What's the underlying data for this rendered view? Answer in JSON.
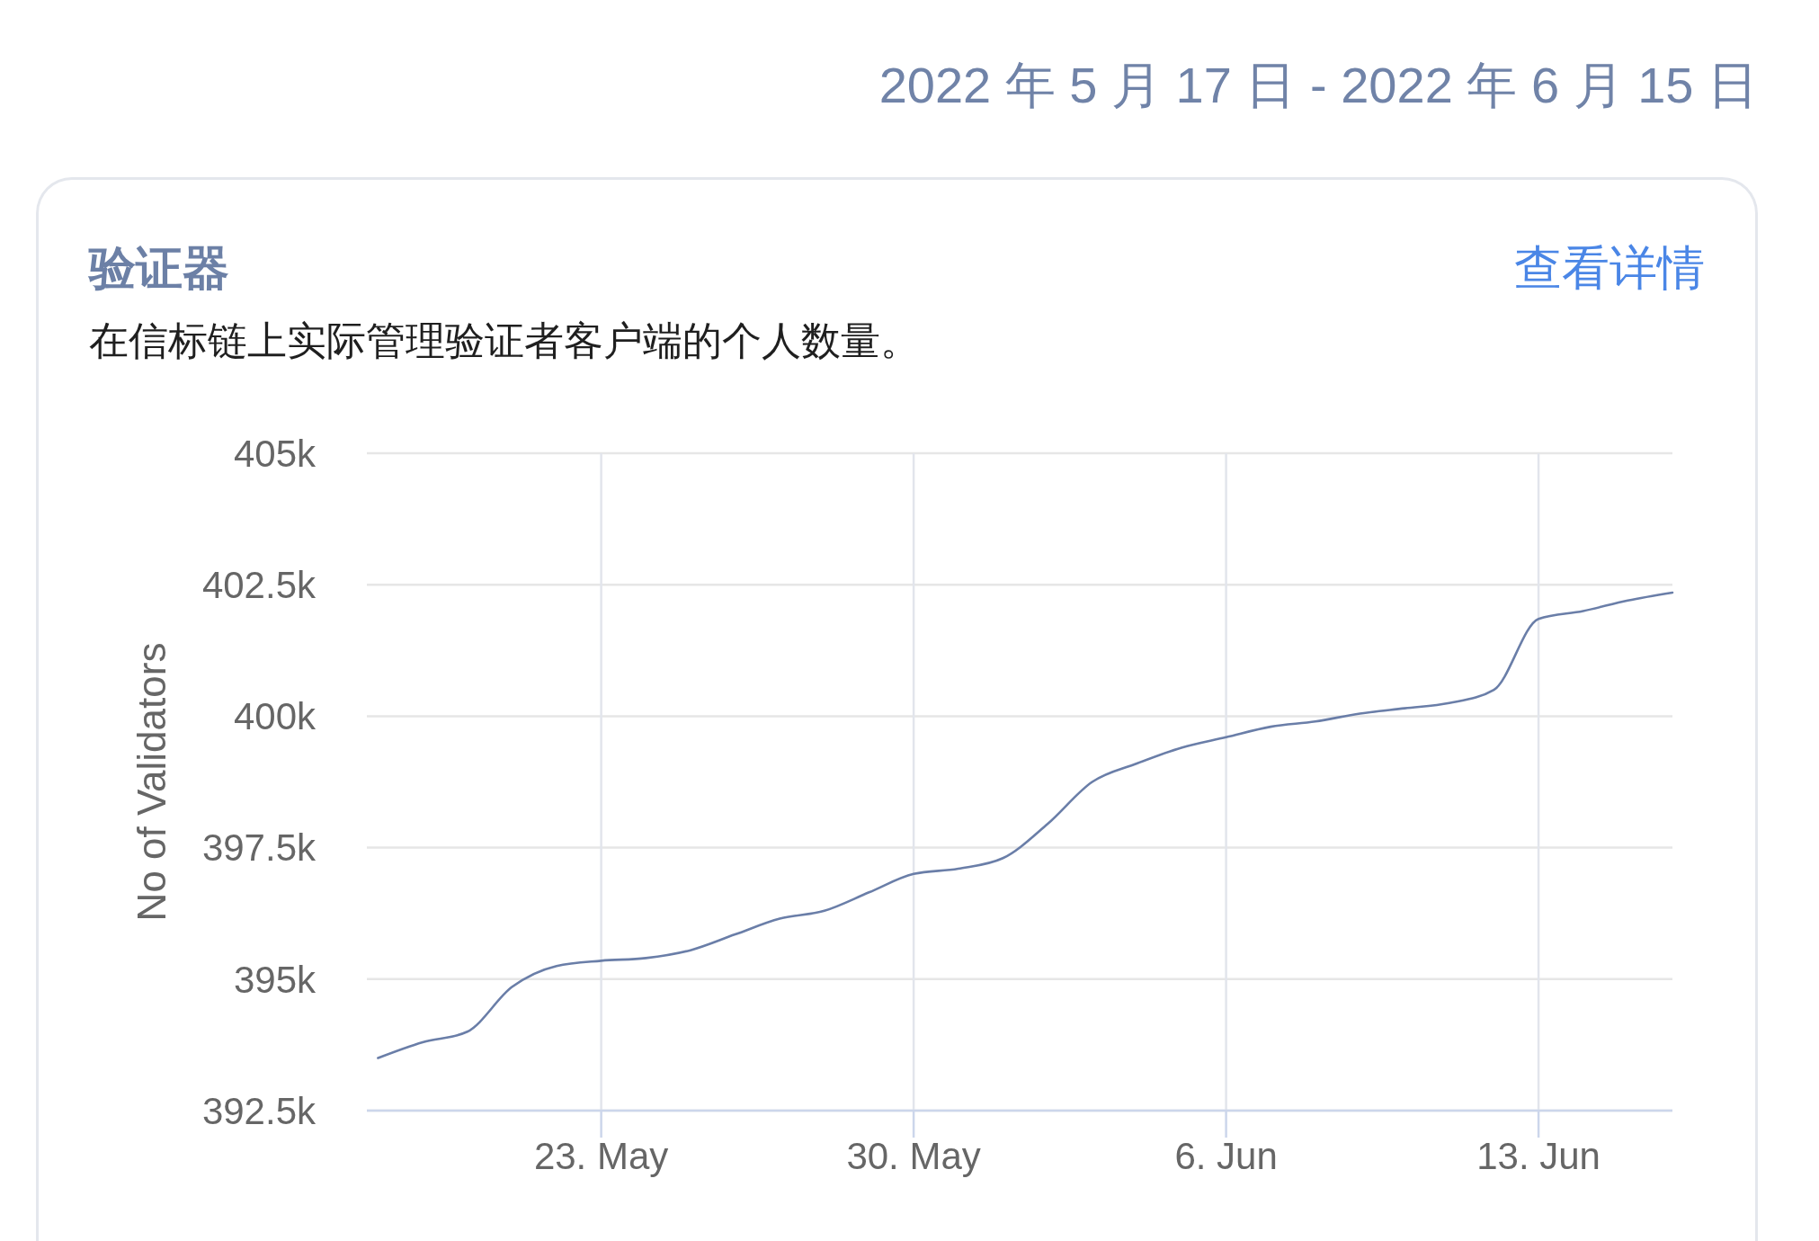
{
  "chart_data": {
    "type": "line",
    "title": "验证器",
    "subtitle": "在信标链上实际管理验证者客户端的个人数量。",
    "ylabel": "No of Validators",
    "annotations": [
      "2022 年 5 月 17 日 - 2022 年 6 月 15 日",
      "查看详情"
    ],
    "x": [
      "2022-05-18",
      "2022-05-19",
      "2022-05-20",
      "2022-05-21",
      "2022-05-22",
      "2022-05-23",
      "2022-05-24",
      "2022-05-25",
      "2022-05-26",
      "2022-05-27",
      "2022-05-28",
      "2022-05-29",
      "2022-05-30",
      "2022-05-31",
      "2022-06-01",
      "2022-06-02",
      "2022-06-03",
      "2022-06-04",
      "2022-06-05",
      "2022-06-06",
      "2022-06-07",
      "2022-06-08",
      "2022-06-09",
      "2022-06-10",
      "2022-06-11",
      "2022-06-12",
      "2022-06-13",
      "2022-06-14",
      "2022-06-15",
      "2022-06-16"
    ],
    "series": [
      {
        "color": "#6a7ea8",
        "values": [
          393500,
          393800,
          394000,
          394850,
          395250,
          395350,
          395400,
          395550,
          395850,
          396150,
          396300,
          396650,
          397000,
          397100,
          397300,
          397950,
          398750,
          399100,
          399400,
          399600,
          399800,
          399900,
          400050,
          400150,
          400250,
          400500,
          401850,
          402000,
          402200,
          402350
        ]
      }
    ],
    "xlim": [
      "2022-05-17T18:00",
      "2022-06-16"
    ],
    "xticks": [
      {
        "value": "2022-05-23",
        "label": "23. May"
      },
      {
        "value": "2022-05-30",
        "label": "30. May"
      },
      {
        "value": "2022-06-06",
        "label": "6. Jun"
      },
      {
        "value": "2022-06-13",
        "label": "13. Jun"
      }
    ],
    "ylim": [
      392500,
      405000
    ],
    "yticks": [
      {
        "value": 392500,
        "label": "392.5k"
      },
      {
        "value": 395000,
        "label": "395k"
      },
      {
        "value": 397500,
        "label": "397.5k"
      },
      {
        "value": 400000,
        "label": "400k"
      },
      {
        "value": 402500,
        "label": "402.5k"
      },
      {
        "value": 405000,
        "label": "405k"
      }
    ],
    "grid": true
  }
}
